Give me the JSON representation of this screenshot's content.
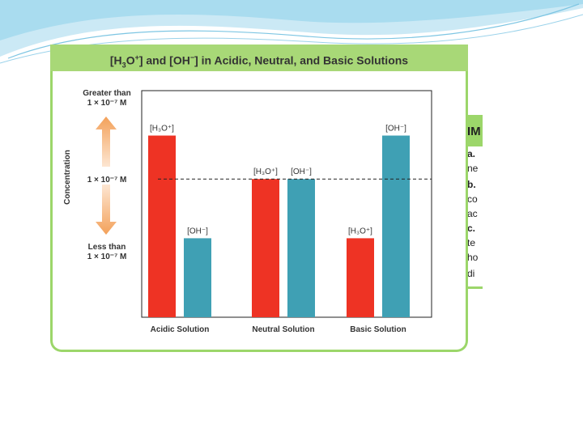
{
  "chart_data": {
    "type": "bar",
    "title_parts": [
      "[H",
      "3",
      "O",
      "+",
      "] and [OH",
      "−",
      "] in Acidic, Neutral, and Basic Solutions"
    ],
    "ylabel": "Concentration",
    "y_ticks": [
      {
        "line1": "Greater than",
        "line2": "1 × 10⁻⁷ M"
      },
      {
        "line1": "",
        "line2": "1 × 10⁻⁷ M"
      },
      {
        "line1": "Less than",
        "line2": "1 × 10⁻⁷ M"
      }
    ],
    "ylim": [
      0,
      1
    ],
    "reference_line": 0.7,
    "categories": [
      "Acidic Solution",
      "Neutral Solution",
      "Basic Solution"
    ],
    "series": [
      {
        "name": "[H3O+]",
        "color": "#ee3324",
        "values": [
          0.92,
          0.7,
          0.4
        ]
      },
      {
        "name": "[OH−]",
        "color": "#3fa0b4",
        "values": [
          0.4,
          0.7,
          0.92
        ]
      }
    ],
    "bar_labels": [
      [
        "[H₃O⁺]",
        "[OH⁻]"
      ],
      [
        "[H₃O⁺]",
        "[OH⁻]"
      ],
      [
        "[H₃O⁺]",
        "[OH⁻]"
      ]
    ],
    "colors": {
      "frame": "#9cd66a",
      "title_bg": "#a8d877",
      "arrow": "#f3a15a"
    }
  },
  "side_card": {
    "header": "IM",
    "lines": [
      "a.",
      "ne",
      "b.",
      "co",
      "ac",
      "c.",
      "te",
      "ho",
      "di"
    ]
  }
}
